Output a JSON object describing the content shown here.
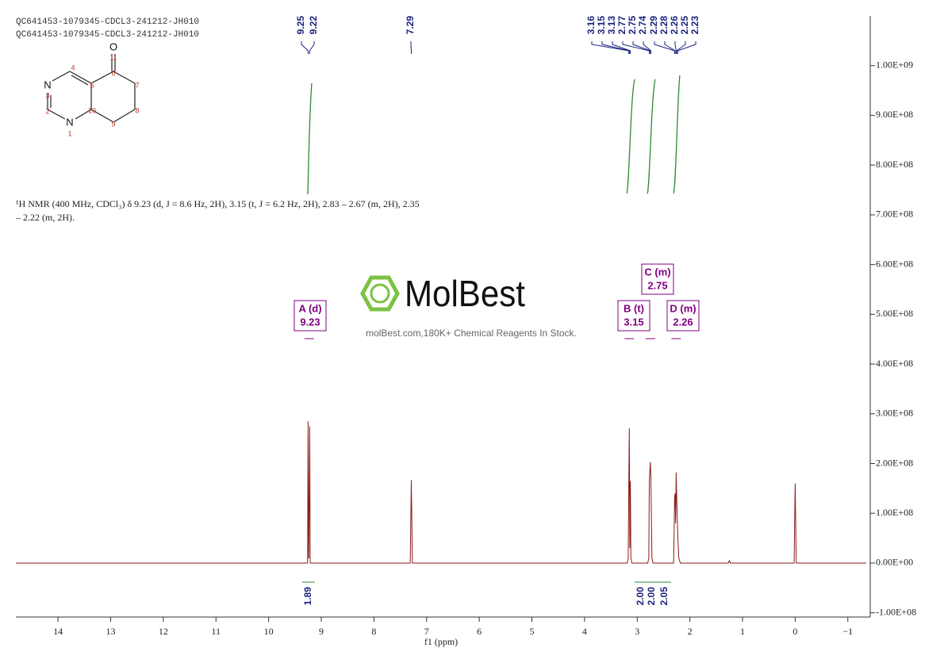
{
  "header": {
    "lines": [
      "QC641453-1079345-CDCL3-241212-JH010",
      "QC641453-1079345-CDCL3-241212-JH010"
    ]
  },
  "structure": {
    "atoms": [
      "O",
      "11",
      "N",
      "3",
      "2",
      "N",
      "1",
      "4",
      "5",
      "6",
      "7",
      "8",
      "9",
      "10"
    ]
  },
  "description": [
    "¹H NMR (400 MHz, CDCl₃) δ 9.23 (d, J = 8.6 Hz, 2H), 3.15 (t, J = 6.2 Hz, 2H), 2.83 – 2.67 (m, 2H), 2.35",
    "– 2.22 (m, 2H)."
  ],
  "watermark": {
    "brand": "MolBest",
    "tagline": "molBest.com,180K+ Chemical Reagents In Stock."
  },
  "chart_data": {
    "type": "line",
    "xlabel": "f1 (ppm)",
    "color": "#8b1a1a",
    "xlim": [
      14.8,
      -1.35
    ],
    "ylim": [
      -108500000,
      1100000000
    ],
    "xticks": [
      14,
      13,
      12,
      11,
      10,
      9,
      8,
      7,
      6,
      5,
      4,
      3,
      2,
      1,
      0,
      {
        "value": -1,
        "label": "−1"
      }
    ],
    "yticks": [
      {
        "value": 1000000000,
        "label": "1.00E+09"
      },
      {
        "value": 900000000,
        "label": "9.00E+08"
      },
      {
        "value": 800000000,
        "label": "8.00E+08"
      },
      {
        "value": 700000000,
        "label": "7.00E+08"
      },
      {
        "value": 600000000,
        "label": "6.00E+08"
      },
      {
        "value": 500000000,
        "label": "5.00E+08"
      },
      {
        "value": 400000000,
        "label": "4.00E+08"
      },
      {
        "value": 300000000,
        "label": "3.00E+08"
      },
      {
        "value": 200000000,
        "label": "2.00E+08"
      },
      {
        "value": 100000000,
        "label": "1.00E+08"
      },
      {
        "value": 0,
        "label": "0.00E+00"
      },
      {
        "value": -100000000,
        "label": "-1.00E+08"
      }
    ],
    "x": [
      14.8,
      9.3,
      9.26,
      9.25,
      9.24,
      9.235,
      9.22,
      9.21,
      9.17,
      7.31,
      7.29,
      7.27,
      3.19,
      3.17,
      3.16,
      3.15,
      3.14,
      3.13,
      3.12,
      3.1,
      2.8,
      2.78,
      2.77,
      2.75,
      2.74,
      2.72,
      2.7,
      2.31,
      2.3,
      2.29,
      2.28,
      2.27,
      2.26,
      2.25,
      2.23,
      2.21,
      2.18,
      1.27,
      1.25,
      1.23,
      0.02,
      0,
      -0.02,
      -1.35
    ],
    "values": [
      0,
      0,
      0,
      285000000,
      10000000,
      10000000,
      275000000,
      0,
      0,
      0,
      167000000,
      0,
      0,
      10000000,
      160000000,
      271000000,
      30000000,
      165000000,
      10000000,
      0,
      0,
      10000000,
      165000000,
      203000000,
      170000000,
      10000000,
      0,
      0,
      50000000,
      130000000,
      140000000,
      80000000,
      182000000,
      135000000,
      55000000,
      10000000,
      0,
      0,
      5000000,
      0,
      0,
      160000000,
      0,
      0
    ],
    "peak_labels": [
      9.25,
      9.22,
      7.29,
      3.16,
      3.15,
      3.13,
      2.77,
      2.75,
      2.74,
      2.29,
      2.28,
      2.26,
      2.25,
      2.23
    ],
    "multiplets": [
      {
        "label": "A (d)",
        "shift": 9.23
      },
      {
        "label": "B (t)",
        "shift": 3.15
      },
      {
        "label": "C (m)",
        "shift": 2.75
      },
      {
        "label": "D (m)",
        "shift": 2.26
      }
    ],
    "integrals": [
      "1.89",
      "2.00",
      "2.00",
      "2.05"
    ]
  }
}
